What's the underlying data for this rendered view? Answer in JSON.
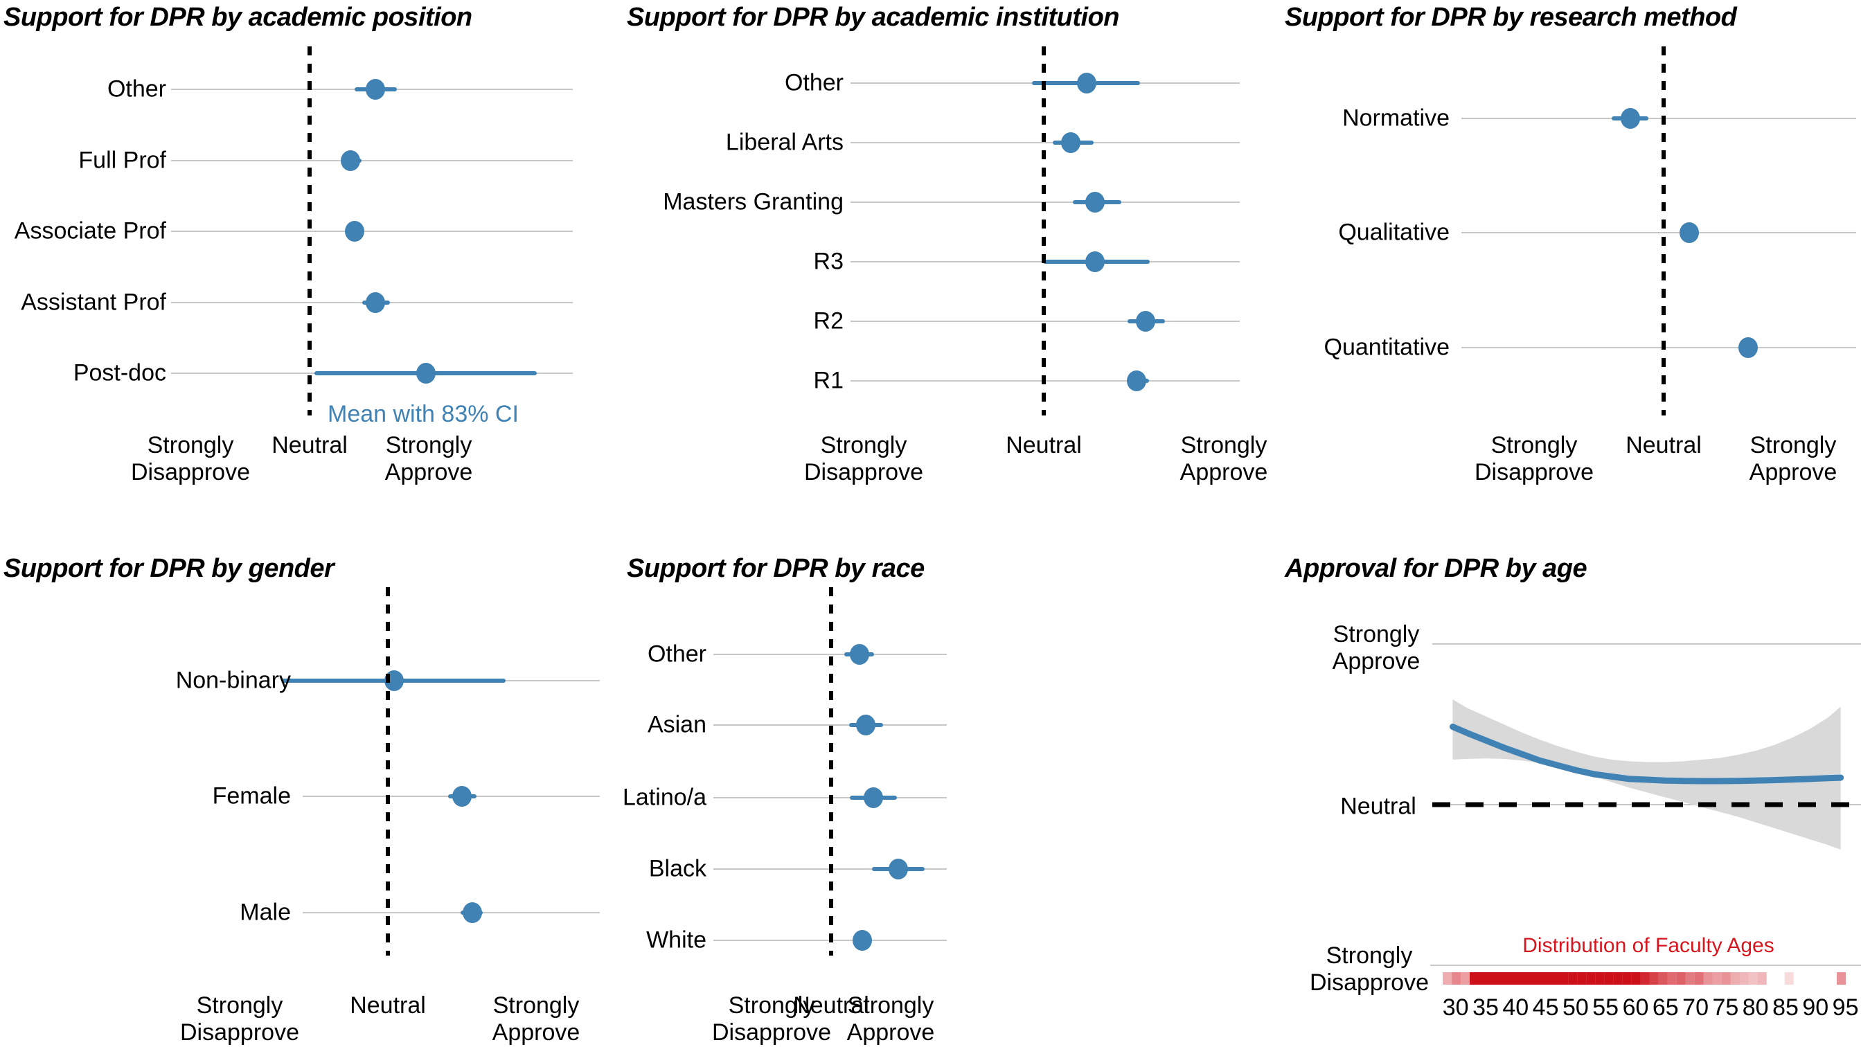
{
  "figure": {
    "description": "Six-panel figure of support for DPR across demographics",
    "likert_scale": {
      "min_label": "Strongly\nDisapprove",
      "mid_label": "Neutral",
      "max_label": "Strongly\nApprove",
      "min": 1,
      "mid": 3,
      "max": 5
    }
  },
  "colors": {
    "accent_blue": "#4182B4",
    "band_gray": "#D9D9D9",
    "grid_gray": "#C7C7C7",
    "rug_red": "#CC1019",
    "red_title": "#D6161E",
    "reference_black": "#000000"
  },
  "chart_data": [
    {
      "type": "dot-ci",
      "id": "position",
      "title": "Support for DPR by academic position",
      "categories": [
        "Other",
        "Full Prof",
        "Associate Prof",
        "Assistant Prof",
        "Post-doc"
      ],
      "means": [
        4.1,
        3.69,
        3.75,
        4.1,
        4.95
      ],
      "ci_low": [
        3.75,
        3.56,
        3.62,
        3.88,
        3.08
      ],
      "ci_high": [
        4.47,
        3.87,
        3.91,
        4.35,
        6.81
      ],
      "reference_line": 3,
      "x_ticks": [
        {
          "value": 1,
          "label": "Strongly\nDisapprove"
        },
        {
          "value": 3,
          "label": "Neutral"
        },
        {
          "value": 5,
          "label": "Strongly\nApprove"
        }
      ],
      "annotation": "Mean with 83% CI"
    },
    {
      "type": "dot-ci",
      "id": "institution",
      "title": "Support for DPR by academic institution",
      "categories": [
        "Other",
        "Liberal Arts",
        "Masters Granting",
        "R3",
        "R2",
        "R1"
      ],
      "means": [
        3.48,
        3.3,
        3.57,
        3.57,
        4.13,
        4.03
      ],
      "ci_low": [
        2.87,
        3.1,
        3.32,
        2.99,
        3.93,
        3.92
      ],
      "ci_high": [
        4.07,
        3.55,
        3.86,
        4.18,
        4.35,
        4.17
      ],
      "reference_line": 3,
      "x_ticks": [
        {
          "value": 1,
          "label": "Strongly\nDisapprove"
        },
        {
          "value": 3,
          "label": "Neutral"
        },
        {
          "value": 5,
          "label": "Strongly\nApprove"
        }
      ]
    },
    {
      "type": "dot-ci",
      "id": "method",
      "title": "Support for DPR by research method",
      "categories": [
        "Normative",
        "Qualitative",
        "Quantitative"
      ],
      "means": [
        2.49,
        3.4,
        4.3
      ],
      "ci_low": [
        2.2,
        3.26,
        4.17
      ],
      "ci_high": [
        2.77,
        3.54,
        4.43
      ],
      "reference_line": 3,
      "x_ticks": [
        {
          "value": 1,
          "label": "Strongly\nDisapprove"
        },
        {
          "value": 3,
          "label": "Neutral"
        },
        {
          "value": 5,
          "label": "Strongly\nApprove"
        }
      ]
    },
    {
      "type": "dot-ci",
      "id": "gender",
      "title": "Support for DPR by gender",
      "categories": [
        "Non-binary",
        "Female",
        "Male"
      ],
      "means": [
        3.08,
        4.0,
        4.14
      ],
      "ci_low": [
        1.56,
        3.81,
        3.98
      ],
      "ci_high": [
        4.59,
        4.2,
        4.28
      ],
      "reference_line": 3,
      "x_ticks": [
        {
          "value": 1,
          "label": "Strongly\nDisapprove"
        },
        {
          "value": 3,
          "label": "Neutral"
        },
        {
          "value": 5,
          "label": "Strongly\nApprove"
        }
      ]
    },
    {
      "type": "dot-ci",
      "id": "race",
      "title": "Support for DPR by race",
      "categories": [
        "Other",
        "Asian",
        "Latino/a",
        "Black",
        "White"
      ],
      "means": [
        3.95,
        4.16,
        4.41,
        5.25,
        4.04
      ],
      "ci_low": [
        3.45,
        3.6,
        3.62,
        4.37,
        3.9
      ],
      "ci_high": [
        4.45,
        4.75,
        5.22,
        6.14,
        4.2
      ],
      "reference_line": 3,
      "x_ticks": [
        {
          "value": 1,
          "label": "Strongly\nDisapprove"
        },
        {
          "value": 3,
          "label": "Neutral"
        },
        {
          "value": 5,
          "label": "Strongly\nApprove"
        }
      ]
    },
    {
      "type": "smooth-line",
      "id": "age",
      "title": "Approval for DPR by age",
      "xlabel": "",
      "y_ticks": [
        {
          "value": 5,
          "label": "Strongly\nApprove"
        },
        {
          "value": 3,
          "label": "Neutral"
        },
        {
          "value": 1,
          "label": "Strongly\nDisapprove"
        }
      ],
      "reference_line": 3,
      "x_ticks": [
        30,
        35,
        40,
        45,
        50,
        55,
        60,
        65,
        70,
        75,
        80,
        85,
        90,
        95
      ],
      "line": {
        "x": [
          29.5,
          32,
          35,
          38,
          41,
          44,
          47,
          50,
          53,
          56,
          59,
          62,
          65,
          68,
          71,
          74,
          77,
          80,
          83,
          86,
          89,
          92,
          94.2
        ],
        "y": [
          3.97,
          3.89,
          3.8,
          3.71,
          3.63,
          3.55,
          3.49,
          3.43,
          3.38,
          3.35,
          3.32,
          3.31,
          3.3,
          3.295,
          3.293,
          3.293,
          3.295,
          3.3,
          3.305,
          3.312,
          3.32,
          3.33,
          3.335
        ]
      },
      "band": {
        "x": [
          29.5,
          32,
          35,
          38,
          41,
          44,
          47,
          50,
          53,
          56,
          59,
          62,
          65,
          68,
          71,
          74,
          77,
          80,
          83,
          86,
          89,
          92,
          94.2
        ],
        "lo": [
          3.56,
          3.57,
          3.575,
          3.57,
          3.55,
          3.52,
          3.47,
          3.41,
          3.35,
          3.28,
          3.21,
          3.15,
          3.09,
          3.03,
          2.97,
          2.91,
          2.85,
          2.78,
          2.71,
          2.64,
          2.57,
          2.5,
          2.44
        ],
        "hi": [
          4.31,
          4.2,
          4.1,
          4.0,
          3.9,
          3.81,
          3.73,
          3.66,
          3.6,
          3.56,
          3.54,
          3.53,
          3.53,
          3.54,
          3.56,
          3.58,
          3.62,
          3.67,
          3.74,
          3.83,
          3.94,
          4.08,
          4.22
        ]
      },
      "rug_title": "Distribution of Faculty Ages",
      "rug": [
        [
          28.6,
          0.35
        ],
        [
          30.1,
          0.5
        ],
        [
          31.6,
          0.4
        ],
        [
          33.1,
          1
        ],
        [
          34.6,
          1
        ],
        [
          36.1,
          1
        ],
        [
          37.6,
          1
        ],
        [
          39.1,
          1
        ],
        [
          40.6,
          1
        ],
        [
          42.1,
          1
        ],
        [
          43.6,
          1
        ],
        [
          45.1,
          1
        ],
        [
          46.6,
          1
        ],
        [
          48.1,
          1
        ],
        [
          49.6,
          1
        ],
        [
          51.1,
          1
        ],
        [
          52.6,
          1
        ],
        [
          54.1,
          1
        ],
        [
          55.6,
          1
        ],
        [
          57.1,
          1
        ],
        [
          58.6,
          1
        ],
        [
          60.1,
          1
        ],
        [
          61.6,
          0.9
        ],
        [
          63.1,
          0.8
        ],
        [
          64.6,
          0.7
        ],
        [
          66.1,
          0.62
        ],
        [
          67.6,
          0.66
        ],
        [
          69.1,
          0.55
        ],
        [
          70.6,
          0.6
        ],
        [
          72.1,
          0.45
        ],
        [
          73.6,
          0.4
        ],
        [
          75.1,
          0.45
        ],
        [
          76.6,
          0.35
        ],
        [
          78.1,
          0.3
        ],
        [
          79.6,
          0.26
        ],
        [
          81.1,
          0.3
        ],
        [
          85.6,
          0.15
        ],
        [
          94.3,
          0.45
        ]
      ]
    }
  ]
}
